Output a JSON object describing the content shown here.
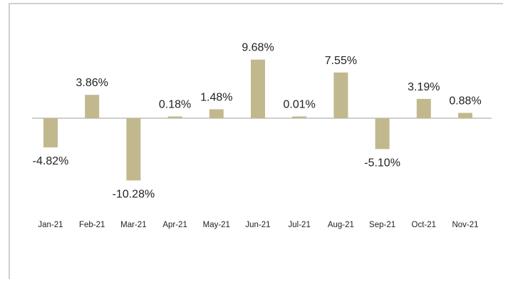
{
  "chart_data": {
    "type": "bar",
    "title": "",
    "xlabel": "",
    "ylabel": "",
    "categories": [
      "Jan-21",
      "Feb-21",
      "Mar-21",
      "Apr-21",
      "May-21",
      "Jun-21",
      "Jul-21",
      "Aug-21",
      "Sep-21",
      "Oct-21",
      "Nov-21"
    ],
    "values": [
      -4.82,
      3.86,
      -10.28,
      0.18,
      1.48,
      9.68,
      0.01,
      7.55,
      -5.1,
      3.19,
      0.88
    ],
    "data_labels": [
      "-4.82%",
      "3.86%",
      "-10.28%",
      "0.18%",
      "1.48%",
      "9.68%",
      "0.01%",
      "7.55%",
      "-5.10%",
      "3.19%",
      "0.88%"
    ],
    "ylim": [
      -11,
      10
    ],
    "grid": false,
    "legend": "none",
    "colors": {
      "bar": "#c2b88e",
      "baseline": "#bdbdbd",
      "text": "#222222"
    }
  }
}
